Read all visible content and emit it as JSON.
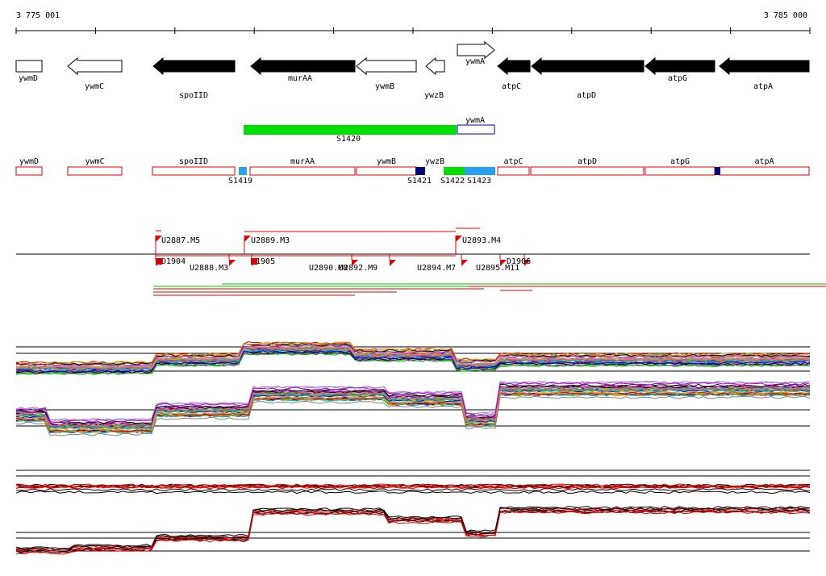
{
  "ruler": {
    "start": "3 775 001",
    "end": "3 785 000"
  },
  "genes": [
    {
      "label": "ywmD"
    },
    {
      "label": "ywmC"
    },
    {
      "label": "spoIID"
    },
    {
      "label": "murAA"
    },
    {
      "label": "ywmB"
    },
    {
      "label": "ywzB"
    },
    {
      "label": "ywmA"
    },
    {
      "label": "atpC"
    },
    {
      "label": "atpD"
    },
    {
      "label": "atpG"
    },
    {
      "label": "atpA"
    }
  ],
  "operon": {
    "segment": "S1420",
    "gene": "ywmA"
  },
  "annotations": [
    {
      "label": "ywmD"
    },
    {
      "label": "ywmC"
    },
    {
      "label": "spoIID"
    },
    {
      "label": "murAA"
    },
    {
      "label": "ywmB"
    },
    {
      "label": "ywzB"
    },
    {
      "label": "atpC"
    },
    {
      "label": "atpD"
    },
    {
      "label": "atpG"
    },
    {
      "label": "atpA"
    }
  ],
  "segments": [
    {
      "label": "S1419"
    },
    {
      "label": "S1421"
    },
    {
      "label": "S1422"
    },
    {
      "label": "S1423"
    }
  ],
  "units": [
    {
      "label": "U2887.M5"
    },
    {
      "label": "U2888.M3"
    },
    {
      "label": "U2889.M3"
    },
    {
      "label": "U2890.M8"
    },
    {
      "label": "U2892.M9"
    },
    {
      "label": "U2893.M4"
    },
    {
      "label": "U2894.M7"
    },
    {
      "label": "U2895.M11"
    },
    {
      "label": "D1904"
    },
    {
      "label": "D1905"
    },
    {
      "label": "D1906"
    }
  ]
}
